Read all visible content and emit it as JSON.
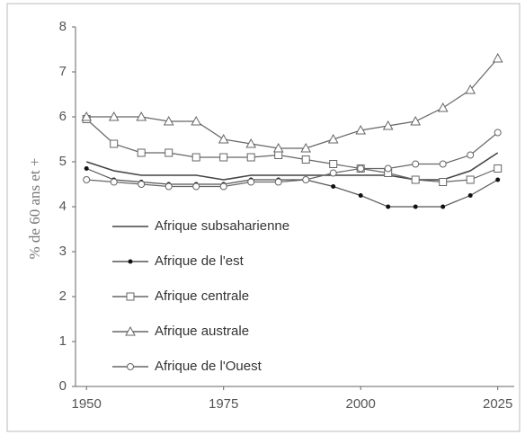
{
  "chart_data": {
    "type": "line",
    "y_label": "% de 60 ans et +",
    "x": [
      1950,
      1955,
      1960,
      1965,
      1970,
      1975,
      1980,
      1985,
      1990,
      1995,
      2000,
      2005,
      2010,
      2015,
      2020,
      2025
    ],
    "xlim": [
      1948,
      2028
    ],
    "xticks": [
      1950,
      1975,
      2000,
      2025
    ],
    "ylim": [
      0,
      8
    ],
    "yticks": [
      0,
      1,
      2,
      3,
      4,
      5,
      6,
      7,
      8
    ],
    "legend": "lower left",
    "series": [
      {
        "name": "Afrique subsaharienne",
        "color": "#444",
        "marker": "none",
        "values": [
          5.0,
          4.8,
          4.7,
          4.7,
          4.7,
          4.6,
          4.7,
          4.7,
          4.7,
          4.7,
          4.7,
          4.7,
          4.6,
          4.6,
          4.8,
          5.2
        ]
      },
      {
        "name": "Afrique de l'est",
        "color": "#555",
        "marker": "dot",
        "values": [
          4.85,
          4.6,
          4.55,
          4.5,
          4.5,
          4.5,
          4.6,
          4.6,
          4.6,
          4.45,
          4.25,
          4.0,
          4.0,
          4.0,
          4.25,
          4.6
        ]
      },
      {
        "name": "Afrique centrale",
        "color": "#666",
        "marker": "square",
        "values": [
          5.95,
          5.4,
          5.2,
          5.2,
          5.1,
          5.1,
          5.1,
          5.15,
          5.05,
          4.95,
          4.85,
          4.75,
          4.6,
          4.55,
          4.6,
          4.85
        ]
      },
      {
        "name": "Afrique australe",
        "color": "#666",
        "marker": "triangle",
        "values": [
          6.0,
          6.0,
          6.0,
          5.9,
          5.9,
          5.5,
          5.4,
          5.3,
          5.3,
          5.5,
          5.7,
          5.8,
          5.9,
          6.2,
          6.6,
          7.3
        ]
      },
      {
        "name": "Afrique de l'Ouest",
        "color": "#666",
        "marker": "circle",
        "values": [
          4.6,
          4.55,
          4.5,
          4.45,
          4.45,
          4.45,
          4.55,
          4.55,
          4.6,
          4.75,
          4.85,
          4.85,
          4.95,
          4.95,
          5.15,
          5.65
        ]
      }
    ]
  }
}
